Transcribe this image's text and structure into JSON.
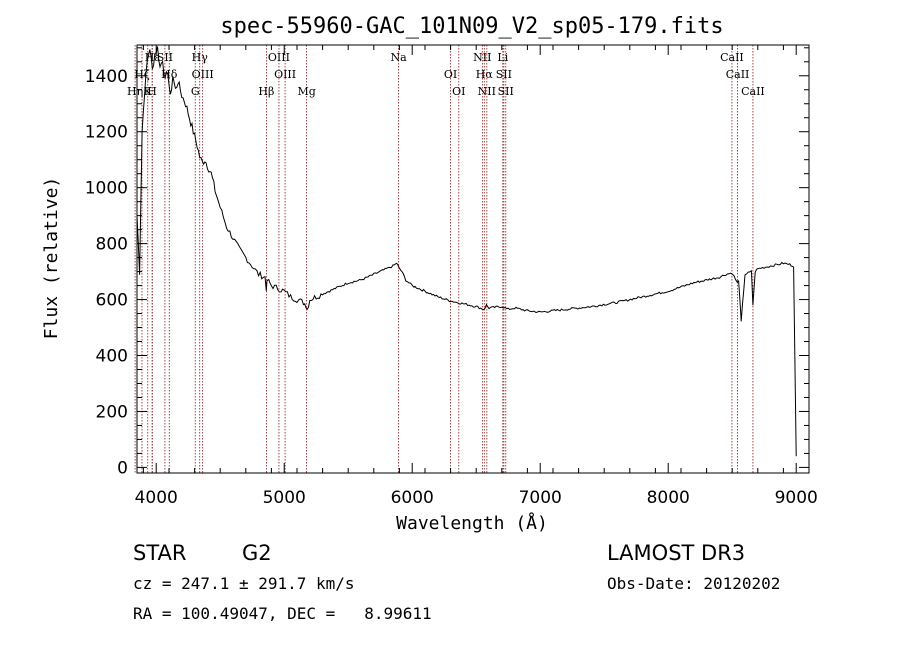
{
  "chart_data": {
    "type": "line",
    "title": "spec-55960-GAC_101N09_V2_sp05-179.fits",
    "xlabel": "Wavelength (Å)",
    "ylabel": "Flux (relative)",
    "xlim": [
      3850,
      9100
    ],
    "ylim": [
      -20,
      1510
    ],
    "xticks": [
      4000,
      5000,
      6000,
      7000,
      8000,
      9000
    ],
    "yticks": [
      0,
      200,
      400,
      600,
      800,
      1000,
      1200,
      1400
    ],
    "grid": false,
    "legend": "none",
    "line_color": "#000000",
    "marker_color": "#8b1a1a",
    "spectrum": {
      "x": [
        3850,
        3870,
        3890,
        3910,
        3930,
        3950,
        3970,
        3990,
        4010,
        4030,
        4050,
        4070,
        4090,
        4110,
        4130,
        4150,
        4170,
        4200,
        4230,
        4260,
        4290,
        4320,
        4340,
        4360,
        4380,
        4400,
        4430,
        4460,
        4500,
        4550,
        4600,
        4650,
        4700,
        4750,
        4800,
        4850,
        4860,
        4870,
        4900,
        4950,
        5000,
        5050,
        5100,
        5150,
        5170,
        5180,
        5200,
        5250,
        5300,
        5400,
        5500,
        5600,
        5700,
        5800,
        5850,
        5880,
        5900,
        5920,
        5950,
        6000,
        6100,
        6200,
        6300,
        6400,
        6500,
        6560,
        6580,
        6600,
        6700,
        6750,
        6800,
        6900,
        7000,
        7100,
        7200,
        7400,
        7600,
        7800,
        8000,
        8200,
        8300,
        8400,
        8450,
        8500,
        8540,
        8550,
        8570,
        8600,
        8650,
        8662,
        8680,
        8700,
        8750,
        8800,
        8850,
        8900,
        8950,
        8980,
        9000
      ],
      "y": [
        900,
        700,
        1200,
        1350,
        1450,
        1500,
        1420,
        1480,
        1500,
        1430,
        1460,
        1380,
        1420,
        1320,
        1400,
        1350,
        1380,
        1330,
        1300,
        1250,
        1200,
        1150,
        1110,
        1090,
        1100,
        1080,
        1050,
        990,
        930,
        860,
        820,
        780,
        750,
        720,
        690,
        680,
        640,
        670,
        650,
        640,
        630,
        610,
        600,
        590,
        580,
        565,
        600,
        610,
        620,
        640,
        660,
        670,
        690,
        710,
        720,
        730,
        710,
        700,
        670,
        650,
        630,
        610,
        595,
        585,
        575,
        565,
        580,
        570,
        575,
        565,
        570,
        560,
        555,
        560,
        565,
        575,
        590,
        610,
        630,
        660,
        670,
        680,
        690,
        695,
        660,
        670,
        520,
        690,
        700,
        580,
        700,
        710,
        715,
        720,
        725,
        730,
        725,
        720,
        40
      ]
    },
    "line_markers": [
      {
        "row": 0,
        "label": "Hε",
        "x": 3970
      },
      {
        "row": 1,
        "label": "Hδ",
        "x": 4102
      },
      {
        "row": 1,
        "label": "Hζ",
        "x": 3889
      },
      {
        "row": 0,
        "label": "SII",
        "x": 4068
      },
      {
        "row": 1,
        "label": "OIII",
        "x": 4363
      },
      {
        "row": 0,
        "label": "Hγ",
        "x": 4340
      },
      {
        "row": 2,
        "label": "Hη",
        "x": 3835
      },
      {
        "row": 2,
        "label": "H",
        "x": 3968
      },
      {
        "row": 2,
        "label": "K",
        "x": 3934
      },
      {
        "row": 2,
        "label": "G",
        "x": 4305
      },
      {
        "row": 2,
        "label": "Hβ",
        "x": 4861
      },
      {
        "row": 1,
        "label": "OIII",
        "x": 5007
      },
      {
        "row": 0,
        "label": "OIII",
        "x": 4959
      },
      {
        "row": 2,
        "label": "Mg",
        "x": 5175
      },
      {
        "row": 0,
        "label": "Na",
        "x": 5894
      },
      {
        "row": 1,
        "label": "OI",
        "x": 6300
      },
      {
        "row": 2,
        "label": "OI",
        "x": 6364
      },
      {
        "row": 1,
        "label": "Hα",
        "x": 6563
      },
      {
        "row": 0,
        "label": "NII",
        "x": 6548
      },
      {
        "row": 2,
        "label": "NII",
        "x": 6583
      },
      {
        "row": 1,
        "label": "SII",
        "x": 6716
      },
      {
        "row": 2,
        "label": "SII",
        "x": 6731
      },
      {
        "row": 0,
        "label": "Li",
        "x": 6708
      },
      {
        "row": 1,
        "label": "CaII",
        "x": 8542
      },
      {
        "row": 0,
        "label": "CaII",
        "x": 8498
      },
      {
        "row": 2,
        "label": "CaII",
        "x": 8662
      }
    ]
  },
  "footer": {
    "object_class": "STAR",
    "subclass": "G2",
    "survey": "LAMOST DR3",
    "redshift": "cz = 247.1 ± 291.7 km/s",
    "obs_date": "Obs-Date: 20120202",
    "coords": "RA = 100.49047, DEC =   8.99611"
  }
}
